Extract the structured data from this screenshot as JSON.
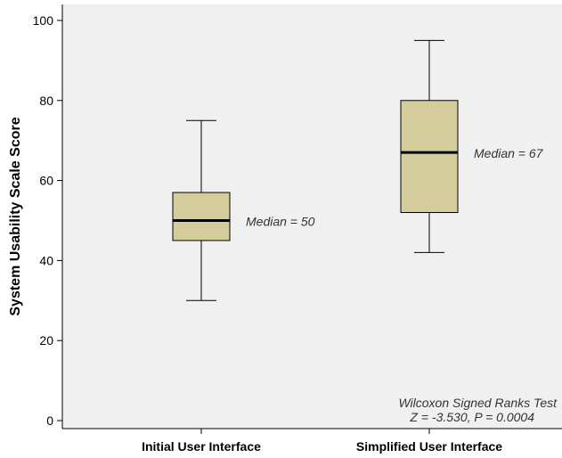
{
  "chart_data": {
    "type": "box",
    "ylabel": "System Usability Scale Score",
    "ylim": [
      -2,
      104
    ],
    "yticks": [
      0,
      20,
      40,
      60,
      80,
      100
    ],
    "categories": [
      "Initial User Interface",
      "Simplified User Interface"
    ],
    "boxes": [
      {
        "category": "Initial User Interface",
        "whisker_low": 30,
        "q1": 45,
        "median": 50,
        "q3": 57,
        "whisker_high": 75,
        "annotation": "Median = 50"
      },
      {
        "category": "Simplified User Interface",
        "whisker_low": 42,
        "q1": 52,
        "median": 67,
        "q3": 80,
        "whisker_high": 95,
        "annotation": "Median = 67"
      }
    ],
    "test_note": {
      "line1": "Wilcoxon Signed Ranks Test",
      "line2": "Z = -3.530, P = 0.0004"
    },
    "colors": {
      "plot_background": "#f0f0f0",
      "box_fill": "#d4cc9a",
      "outline": "#000000"
    }
  }
}
